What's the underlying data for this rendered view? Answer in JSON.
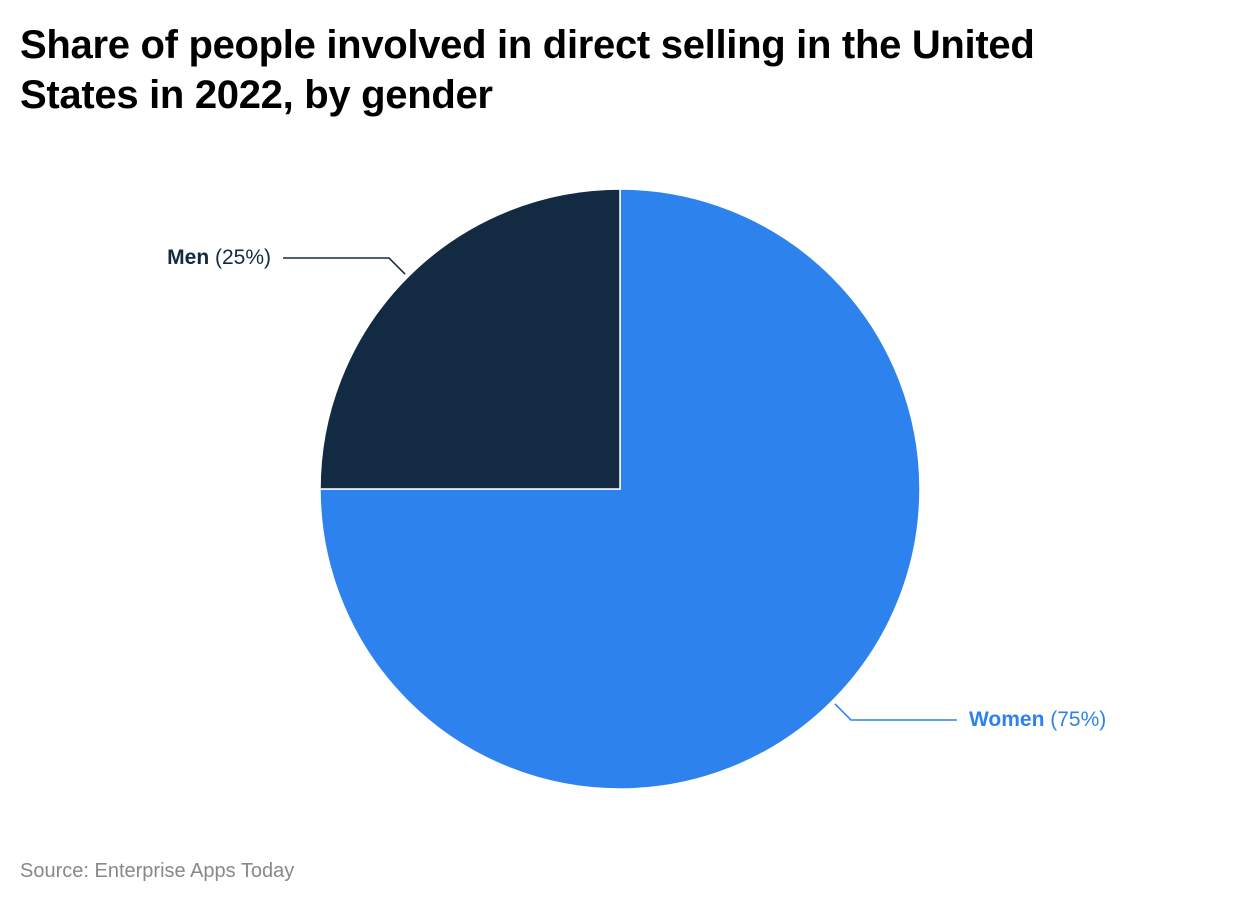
{
  "chart_data": {
    "type": "pie",
    "title": "Share of people involved in direct selling in the United States in 2022, by gender",
    "categories": [
      "Women",
      "Men"
    ],
    "values": [
      75,
      25
    ],
    "value_labels": [
      "(75%)",
      "(25%)"
    ],
    "colors": [
      "#2d82ee",
      "#132a43"
    ],
    "source": "Source: Enterprise Apps Today"
  }
}
